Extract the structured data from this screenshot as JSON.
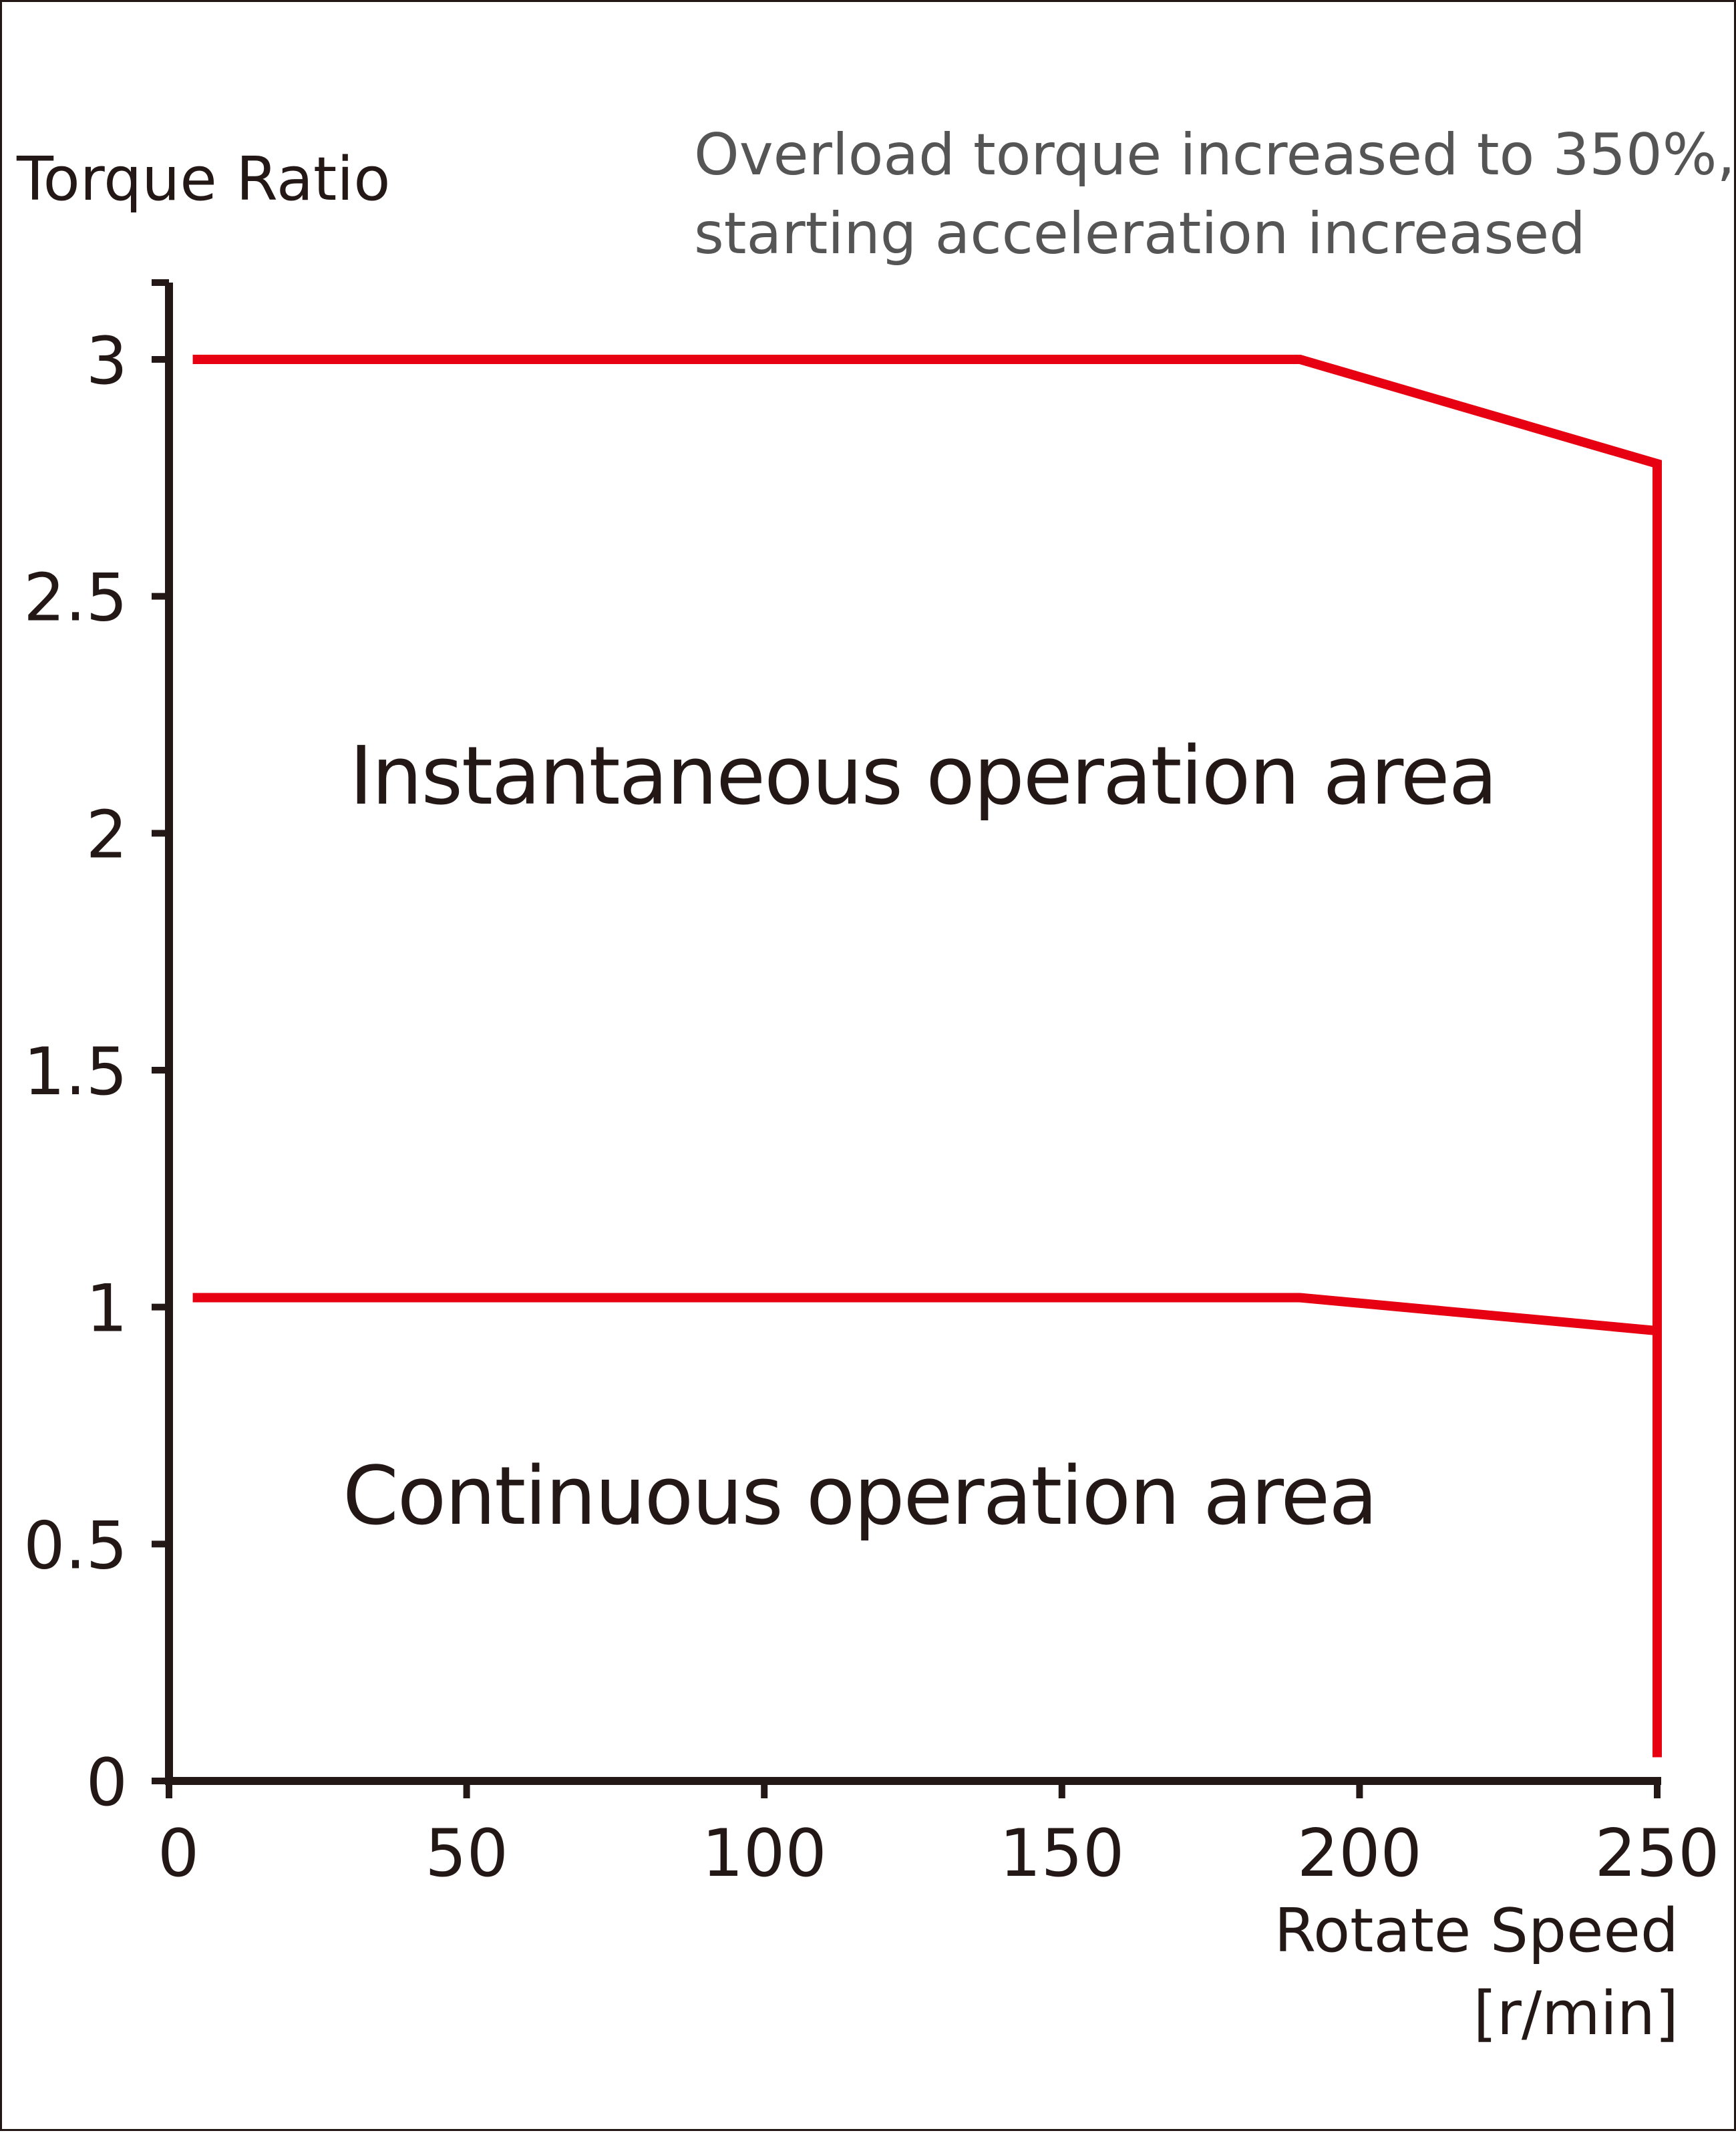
{
  "chart_data": {
    "type": "line",
    "ylabel": "Torque Ratio",
    "xlabel_line1": "Rotate Speed",
    "xlabel_line2": "[r/min]",
    "annotation_line1": "Overload torque increased to 350%,",
    "annotation_line2": "starting acceleration increased",
    "region_labels": [
      "Instantaneous operation area",
      "Continuous operation area"
    ],
    "xlim": [
      0,
      250
    ],
    "ylim": [
      0,
      3.15
    ],
    "xticks": [
      0,
      50,
      100,
      150,
      200,
      250
    ],
    "xtick_labels": [
      "0",
      "50",
      "100",
      "150",
      "200",
      "250"
    ],
    "yticks": [
      0,
      0.5,
      1,
      1.5,
      2,
      2.5,
      3
    ],
    "ytick_labels": [
      "0",
      "0.5",
      "1",
      "1.5",
      "2",
      "2.5",
      "3"
    ],
    "grid": false,
    "series": [
      {
        "x": [
          4,
          190,
          250,
          250
        ],
        "y": [
          3.0,
          3.0,
          2.78,
          0.05
        ]
      },
      {
        "x": [
          4,
          190,
          250
        ],
        "y": [
          1.02,
          1.02,
          0.95
        ]
      }
    ],
    "line_color": "#e60012",
    "axis_color": "#231815"
  }
}
